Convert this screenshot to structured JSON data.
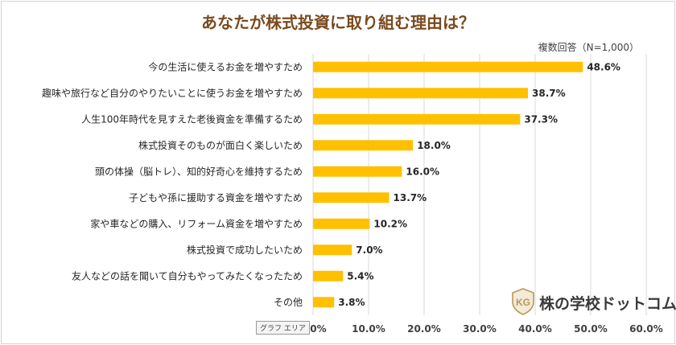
{
  "chart_data": {
    "type": "bar",
    "orientation": "horizontal",
    "title": "あなたが株式投資に取り組む理由は？",
    "subtitle": "複数回答（N=1,000）",
    "categories": [
      "今の生活に使えるお金を増やすため",
      "趣味や旅行など自分のやりたいことに使うお金を増やすため",
      "人生100年時代を見すえた老後資金を準備するため",
      "株式投資そのものが面白く楽しいため",
      "頭の体操（脳トレ）、知的好奇心を維持するため",
      "子どもや孫に援助する資金を増やすため",
      "家や車などの購入、リフォーム資金を増やすため",
      "株式投資で成功したいため",
      "友人などの話を聞いて自分もやってみたくなったため",
      "その他"
    ],
    "values": [
      48.6,
      38.7,
      37.3,
      18.0,
      16.0,
      13.7,
      10.2,
      7.0,
      5.4,
      3.8
    ],
    "value_labels": [
      "48.6%",
      "38.7%",
      "37.3%",
      "18.0%",
      "16.0%",
      "13.7%",
      "10.2%",
      "7.0%",
      "5.4%",
      "3.8%"
    ],
    "xlim": [
      0,
      60
    ],
    "xticks": [
      0,
      10,
      20,
      30,
      40,
      50,
      60
    ],
    "xtick_labels": [
      "0.0%",
      "10.0%",
      "20.0%",
      "30.0%",
      "40.0%",
      "50.0%",
      "60.0%"
    ],
    "grid": true,
    "bar_color": "#FFC000",
    "grid_color": "#D9D9D9"
  },
  "chart_area_tag": "グラフ エリア",
  "logo": {
    "text": "株の学校ドットコム",
    "mark_letters": "KG"
  }
}
